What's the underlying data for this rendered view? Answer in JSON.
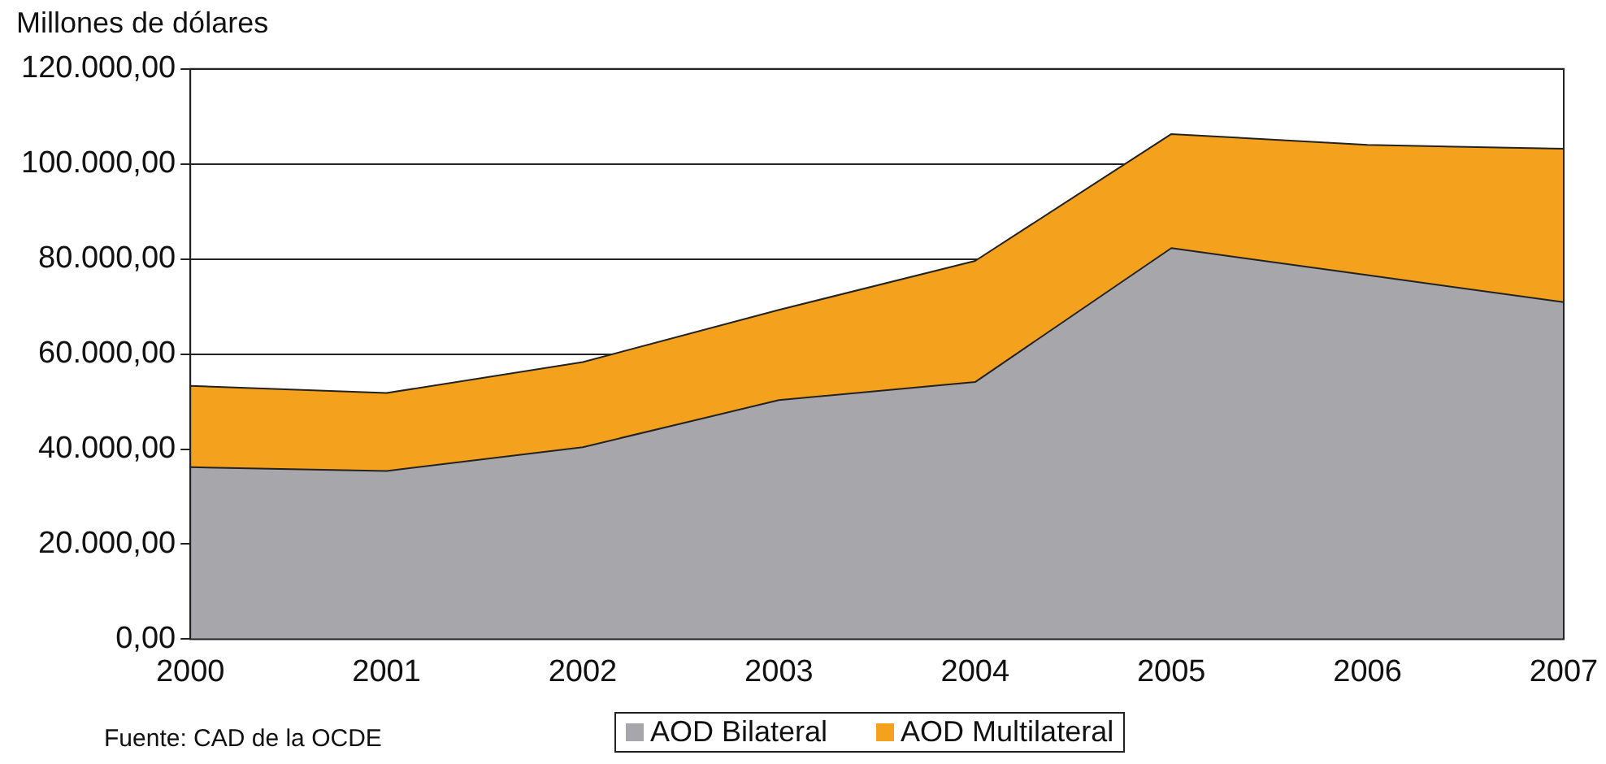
{
  "chart_data": {
    "type": "area",
    "ylabel": "Millones de dólares",
    "x": [
      2000,
      2001,
      2002,
      2003,
      2004,
      2005,
      2006,
      2007
    ],
    "xlim": [
      2000,
      2007
    ],
    "xticks": [
      2000,
      2001,
      2002,
      2003,
      2004,
      2005,
      2006,
      2007
    ],
    "ylim": [
      0,
      120000
    ],
    "yticks": [
      {
        "value": 0,
        "label": "0,00"
      },
      {
        "value": 20000,
        "label": "20.000,00"
      },
      {
        "value": 40000,
        "label": "40.000,00"
      },
      {
        "value": 60000,
        "label": "60.000,00"
      },
      {
        "value": 80000,
        "label": "80.000,00"
      },
      {
        "value": 100000,
        "label": "100.000,00"
      },
      {
        "value": 120000,
        "label": "120.000,00"
      }
    ],
    "stacked": true,
    "grid": "y",
    "legend": "bottom",
    "annotations": [
      "Fuente: CAD de la OCDE"
    ],
    "series": [
      {
        "name": "AOD Bilateral",
        "color": "#a7a6ab",
        "values": [
          36200,
          35400,
          40400,
          50300,
          54100,
          82300,
          76600,
          70900
        ]
      },
      {
        "name": "AOD Multilateral",
        "color": "#f4a11d",
        "values": [
          17100,
          16400,
          17900,
          19000,
          25500,
          24000,
          27400,
          32300
        ]
      }
    ]
  }
}
